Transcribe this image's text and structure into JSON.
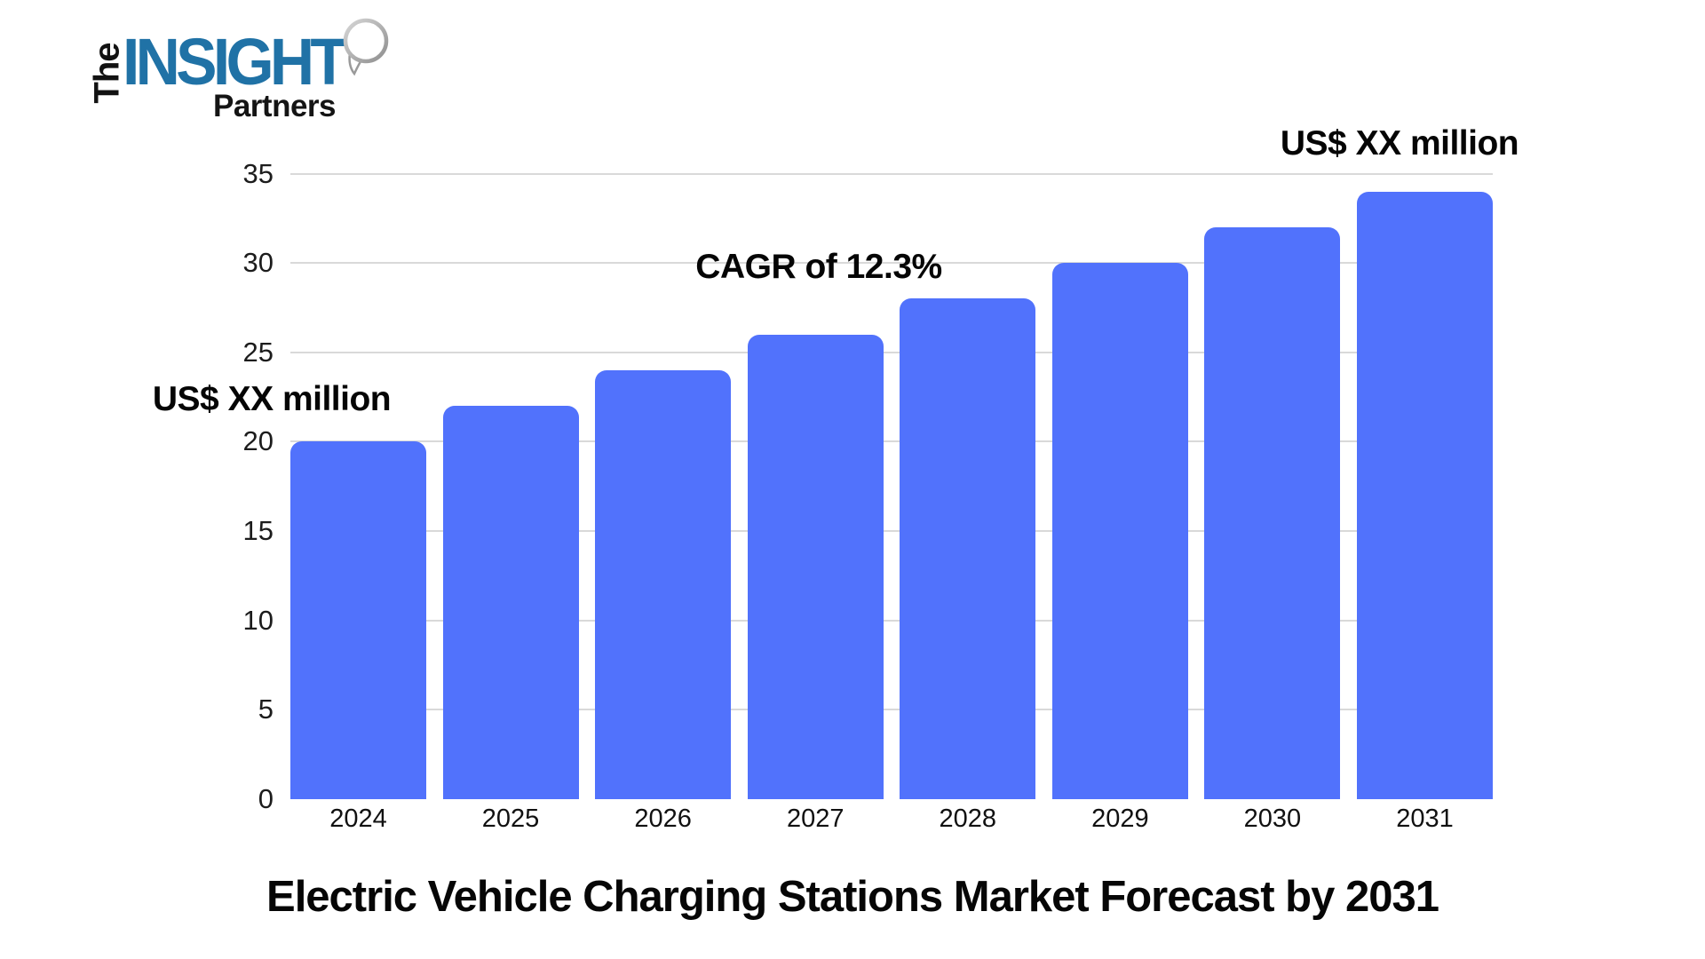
{
  "logo": {
    "the": "The",
    "insight": "INSIGHT",
    "partners": "Partners",
    "insight_color": "#2072A6",
    "text_color": "#121212"
  },
  "chart_data": {
    "type": "bar",
    "title": "Electric Vehicle Charging Stations Market Forecast by 2031",
    "categories": [
      "2024",
      "2025",
      "2026",
      "2027",
      "2028",
      "2029",
      "2030",
      "2031"
    ],
    "values": [
      20,
      22,
      24,
      26,
      28,
      30,
      32,
      34
    ],
    "ylim": [
      0,
      35
    ],
    "yticks": [
      0,
      5,
      10,
      15,
      20,
      25,
      30,
      35
    ],
    "xlabel": "",
    "ylabel": "",
    "grid": true,
    "legend": false,
    "bar_color": "#5172FC",
    "gridline_color": "#D9D9D9",
    "annotations": {
      "start": "US$ XX million",
      "cagr": "CAGR of 12.3%",
      "end": "US$ XX million"
    }
  }
}
